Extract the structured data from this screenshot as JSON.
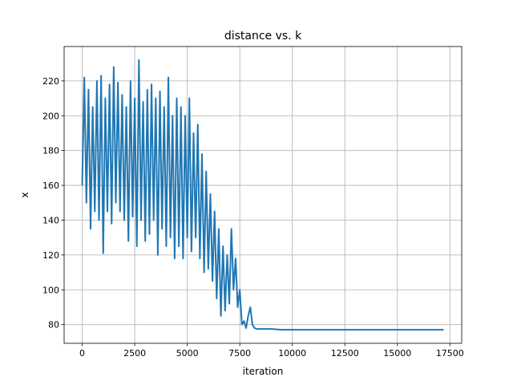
{
  "chart_data": {
    "type": "line",
    "title": "distance vs. k",
    "x_label": "iteration",
    "y_label": "x",
    "x": [
      0,
      100,
      200,
      300,
      400,
      500,
      600,
      700,
      800,
      900,
      1000,
      1100,
      1200,
      1300,
      1400,
      1500,
      1600,
      1700,
      1800,
      1900,
      2000,
      2100,
      2200,
      2300,
      2400,
      2500,
      2600,
      2700,
      2800,
      2900,
      3000,
      3100,
      3200,
      3300,
      3400,
      3500,
      3600,
      3700,
      3800,
      3900,
      4000,
      4100,
      4200,
      4300,
      4400,
      4500,
      4600,
      4700,
      4800,
      4900,
      5000,
      5100,
      5200,
      5300,
      5400,
      5500,
      5600,
      5700,
      5800,
      5900,
      6000,
      6100,
      6200,
      6300,
      6400,
      6500,
      6600,
      6700,
      6800,
      6900,
      7000,
      7100,
      7200,
      7300,
      7400,
      7500,
      7600,
      7700,
      7800,
      7900,
      8000,
      8100,
      8200,
      8300,
      9000,
      9500,
      10000,
      12000,
      14000,
      17200
    ],
    "series": [
      {
        "name": "x",
        "color": "#1f77b4",
        "values": [
          160,
          222,
          150,
          215,
          135,
          205,
          145,
          220,
          140,
          223,
          121,
          210,
          145,
          218,
          138,
          228,
          150,
          219,
          145,
          212,
          140,
          205,
          128,
          220,
          142,
          210,
          125,
          232,
          140,
          208,
          128,
          215,
          132,
          218,
          140,
          210,
          120,
          214,
          135,
          205,
          125,
          222,
          130,
          200,
          118,
          210,
          125,
          205,
          118,
          200,
          130,
          210,
          122,
          190,
          130,
          195,
          118,
          178,
          110,
          168,
          112,
          155,
          105,
          145,
          95,
          135,
          85,
          125,
          88,
          120,
          92,
          135,
          100,
          118,
          90,
          100,
          80,
          82,
          78,
          85,
          90,
          80,
          78,
          77.5,
          77.5,
          77,
          77,
          77,
          77,
          77
        ]
      }
    ],
    "xlim": [
      -860,
      18060
    ],
    "ylim": [
      69.25,
      239.75
    ],
    "xticks": [
      0,
      2500,
      5000,
      7500,
      10000,
      12500,
      15000,
      17500
    ],
    "yticks": [
      80,
      100,
      120,
      140,
      160,
      180,
      200,
      220
    ],
    "grid": true
  }
}
